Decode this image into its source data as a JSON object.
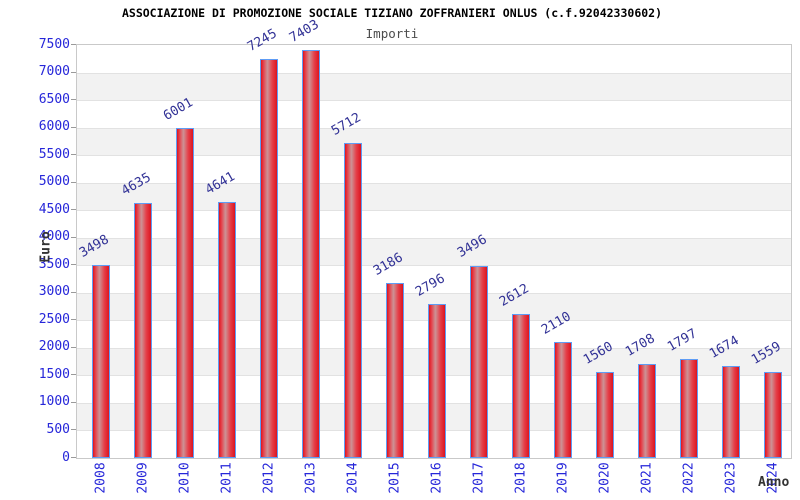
{
  "header": {
    "title": "ASSOCIAZIONE DI PROMOZIONE SOCIALE TIZIANO ZOFFRANIERI ONLUS (c.f.92042330602)",
    "subtitle": "Importi"
  },
  "chart_data": {
    "type": "bar",
    "title": "Importi",
    "categories": [
      "2008",
      "2009",
      "2010",
      "2011",
      "2012",
      "2013",
      "2014",
      "2015",
      "2016",
      "2017",
      "2018",
      "2019",
      "2020",
      "2021",
      "2022",
      "2023",
      "2024"
    ],
    "values": [
      3498,
      4635,
      6001,
      4641,
      7245,
      7403,
      5712,
      3186,
      2796,
      3496,
      2612,
      2110,
      1560,
      1708,
      1797,
      1674,
      1559
    ],
    "xlabel": "Anno",
    "ylabel": "Euro",
    "ylim": [
      0,
      7500
    ],
    "ytick_step": 500,
    "legend": "none",
    "grid": "alternating horizontal bands every 500, light gridlines",
    "bar_value_labels_rotation_deg": -30,
    "x_tick_rotation_deg": -90,
    "colors": {
      "bar_edge_red": "#dc1420",
      "bar_mid_red": "#e5404a",
      "bar_highlight": "#cc9396",
      "bar_border_blue": "#5e9cf5",
      "axis_tick_label_blue": "#2626d9",
      "value_label_navy": "#323296",
      "band_gray": "#f2f2f2",
      "band_white": "#ffffff",
      "grid_line_gray": "#e2e2e2",
      "plot_border_gray": "#c9c9c9",
      "axis_title_dark": "#333333",
      "subtitle_gray": "#4d4d4d",
      "title_black": "#000000"
    }
  }
}
